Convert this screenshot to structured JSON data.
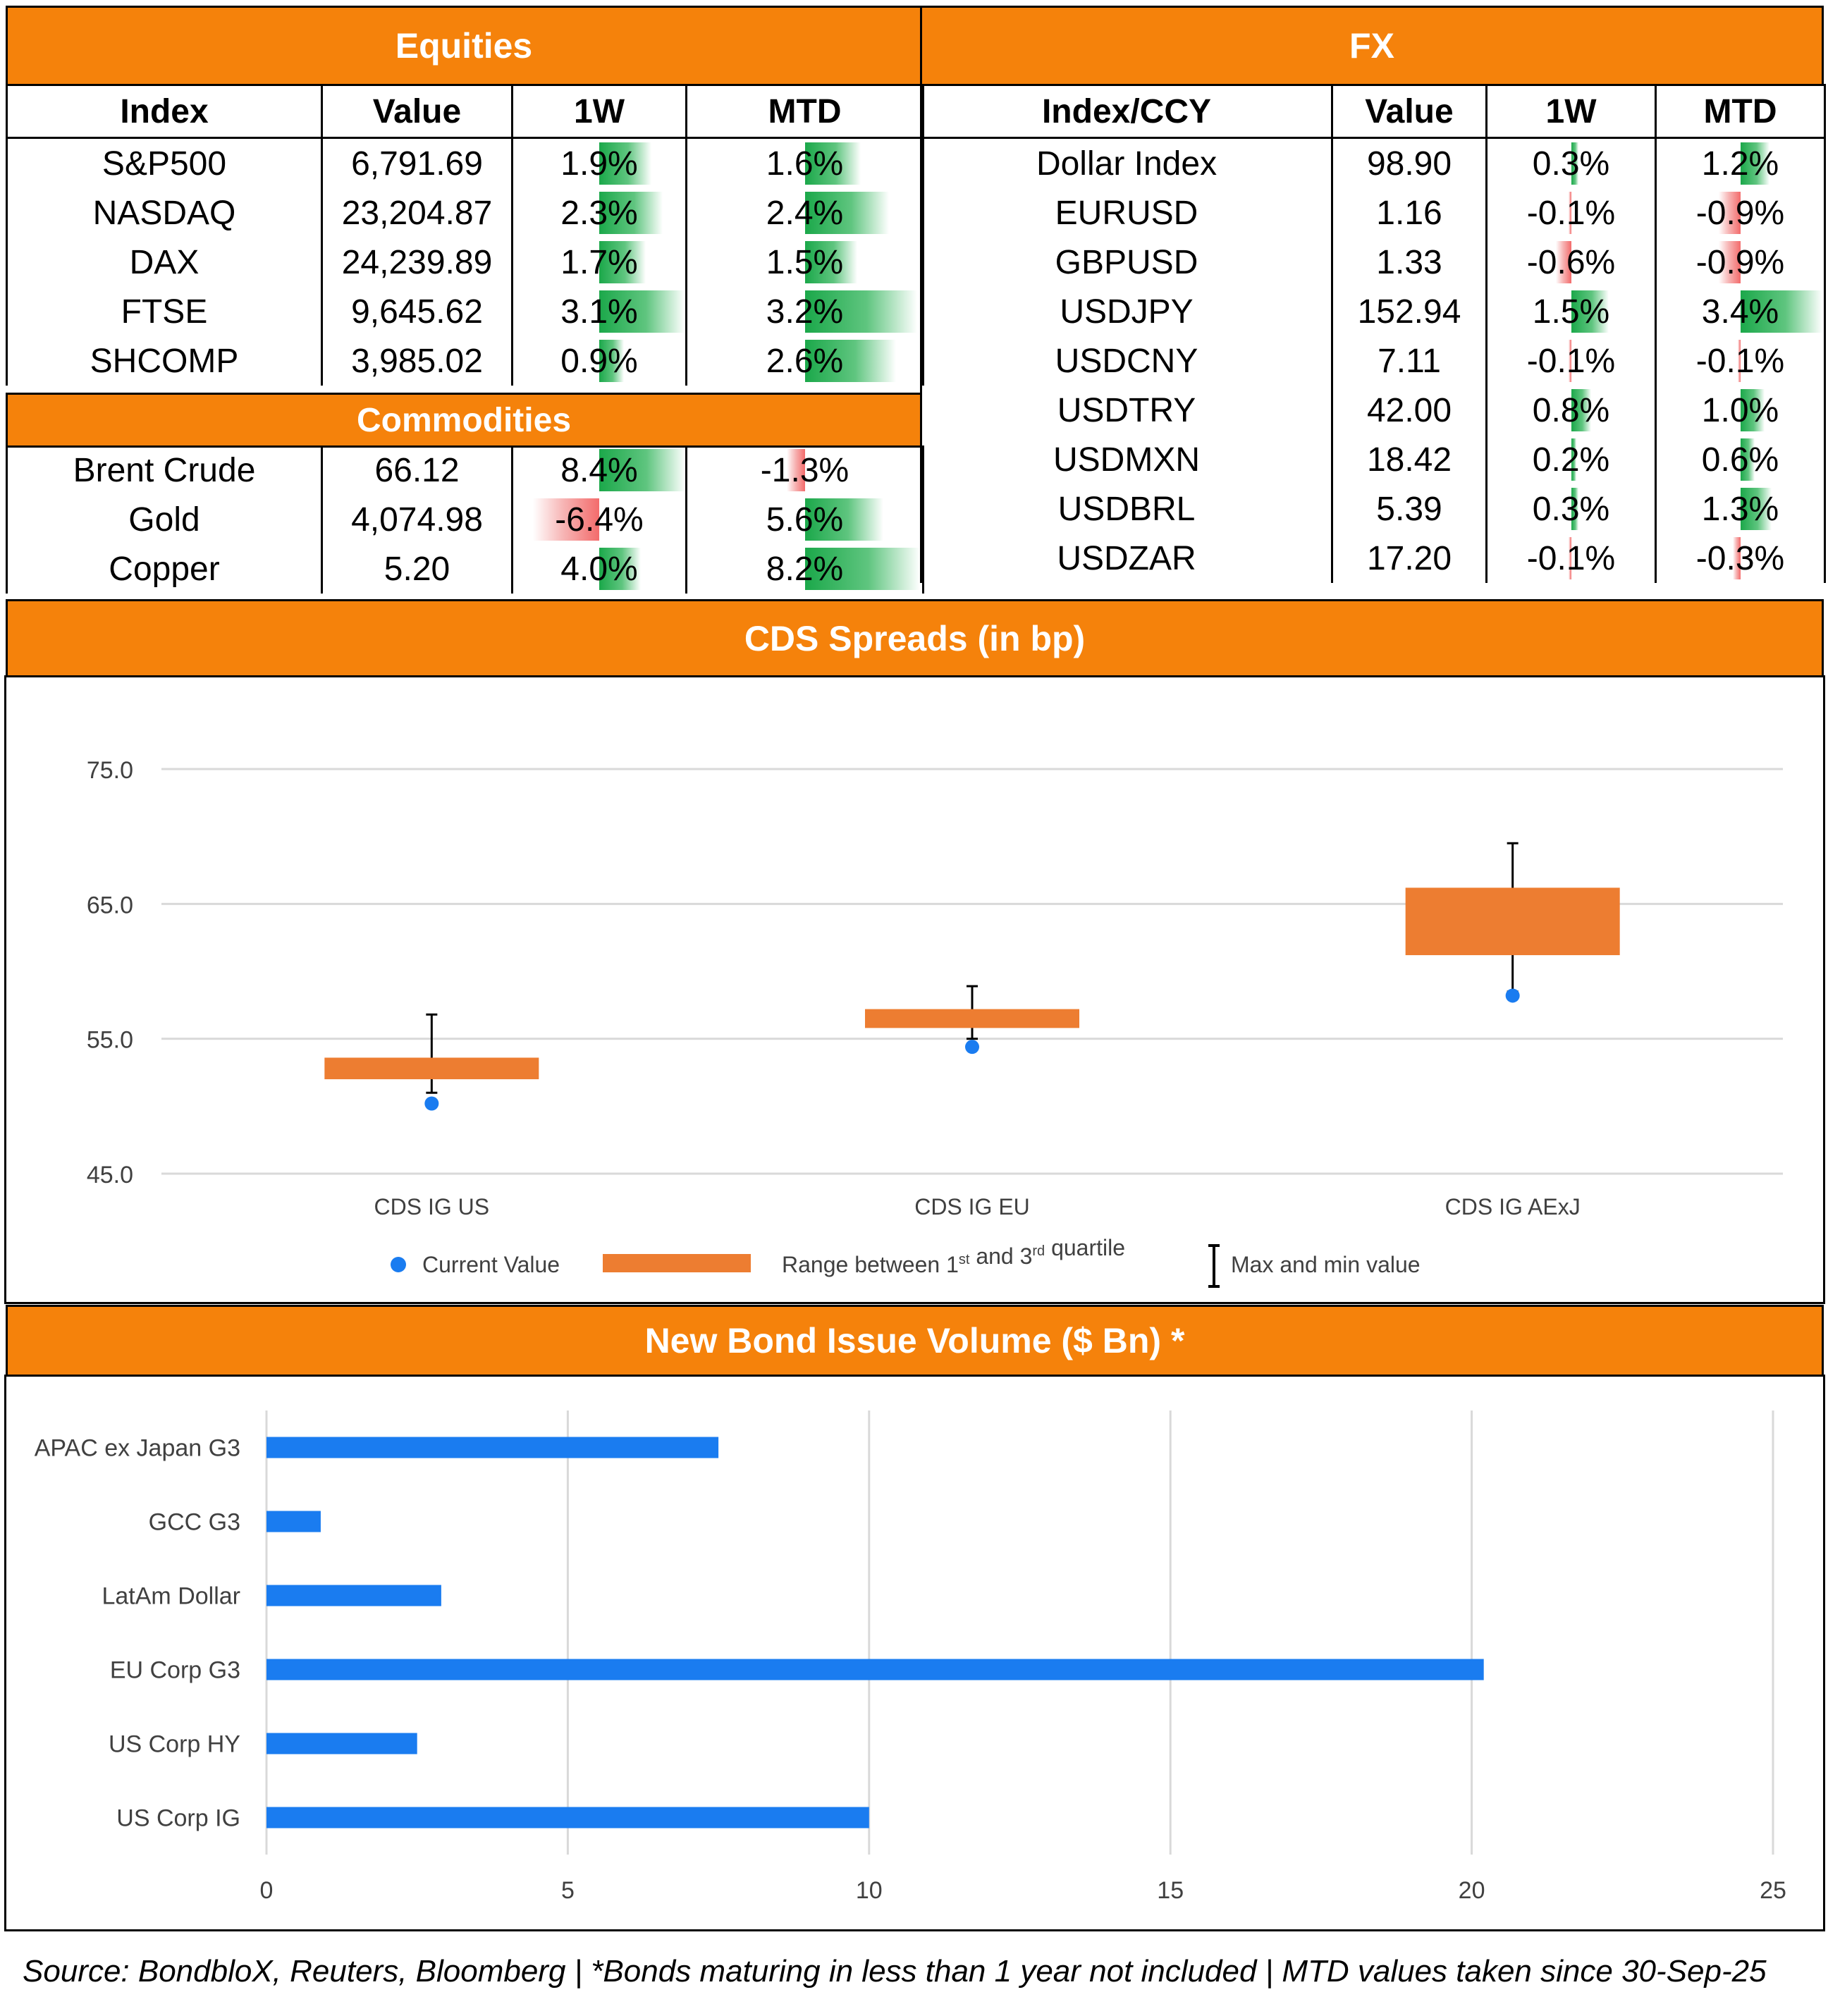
{
  "equities": {
    "title": "Equities",
    "headers": [
      "Index",
      "Value",
      "1W",
      "MTD"
    ],
    "rows": [
      {
        "name": "S&P500",
        "value": "6,791.69",
        "w1": "1.9%",
        "w1_num": 1.9,
        "mtd": "1.6%",
        "mtd_num": 1.6
      },
      {
        "name": "NASDAQ",
        "value": "23,204.87",
        "w1": "2.3%",
        "w1_num": 2.3,
        "mtd": "2.4%",
        "mtd_num": 2.4
      },
      {
        "name": "DAX",
        "value": "24,239.89",
        "w1": "1.7%",
        "w1_num": 1.7,
        "mtd": "1.5%",
        "mtd_num": 1.5
      },
      {
        "name": "FTSE",
        "value": "9,645.62",
        "w1": "3.1%",
        "w1_num": 3.1,
        "mtd": "3.2%",
        "mtd_num": 3.2
      },
      {
        "name": "SHCOMP",
        "value": "3,985.02",
        "w1": "0.9%",
        "w1_num": 0.9,
        "mtd": "2.6%",
        "mtd_num": 2.6
      }
    ]
  },
  "commodities": {
    "title": "Commodities",
    "rows": [
      {
        "name": "Brent Crude",
        "value": "66.12",
        "w1": "8.4%",
        "w1_num": 8.4,
        "mtd": "-1.3%",
        "mtd_num": -1.3
      },
      {
        "name": "Gold",
        "value": "4,074.98",
        "w1": "-6.4%",
        "w1_num": -6.4,
        "mtd": "5.6%",
        "mtd_num": 5.6
      },
      {
        "name": "Copper",
        "value": "5.20",
        "w1": "4.0%",
        "w1_num": 4.0,
        "mtd": "8.2%",
        "mtd_num": 8.2
      }
    ]
  },
  "fx": {
    "title": "FX",
    "headers": [
      "Index/CCY",
      "Value",
      "1W",
      "MTD"
    ],
    "rows": [
      {
        "name": "Dollar Index",
        "value": "98.90",
        "w1": "0.3%",
        "w1_num": 0.3,
        "mtd": "1.2%",
        "mtd_num": 1.2
      },
      {
        "name": "EURUSD",
        "value": "1.16",
        "w1": "-0.1%",
        "w1_num": -0.1,
        "mtd": "-0.9%",
        "mtd_num": -0.9
      },
      {
        "name": "GBPUSD",
        "value": "1.33",
        "w1": "-0.6%",
        "w1_num": -0.6,
        "mtd": "-0.9%",
        "mtd_num": -0.9
      },
      {
        "name": "USDJPY",
        "value": "152.94",
        "w1": "1.5%",
        "w1_num": 1.5,
        "mtd": "3.4%",
        "mtd_num": 3.4
      },
      {
        "name": "USDCNY",
        "value": "7.11",
        "w1": "-0.1%",
        "w1_num": -0.1,
        "mtd": "-0.1%",
        "mtd_num": -0.1
      },
      {
        "name": "USDTRY",
        "value": "42.00",
        "w1": "0.8%",
        "w1_num": 0.8,
        "mtd": "1.0%",
        "mtd_num": 1.0
      },
      {
        "name": "USDMXN",
        "value": "18.42",
        "w1": "0.2%",
        "w1_num": 0.2,
        "mtd": "0.6%",
        "mtd_num": 0.6
      },
      {
        "name": "USDBRL",
        "value": "5.39",
        "w1": "0.3%",
        "w1_num": 0.3,
        "mtd": "1.3%",
        "mtd_num": 1.3
      },
      {
        "name": "USDZAR",
        "value": "17.20",
        "w1": "-0.1%",
        "w1_num": -0.1,
        "mtd": "-0.3%",
        "mtd_num": -0.3
      }
    ]
  },
  "chart_data": [
    {
      "type": "box",
      "title": "CDS Spreads (in bp)",
      "categories": [
        "CDS IG US",
        "CDS IG EU",
        "CDS IG AExJ"
      ],
      "q1": [
        52.0,
        55.8,
        61.2
      ],
      "q3": [
        53.6,
        57.2,
        66.2
      ],
      "min": [
        51.0,
        55.0,
        58.5
      ],
      "max": [
        56.8,
        58.9,
        69.5
      ],
      "current": [
        50.2,
        54.4,
        58.2
      ],
      "ylim": [
        45,
        75
      ],
      "yticks": [
        "45.0",
        "55.0",
        "65.0",
        "75.0"
      ],
      "ytick_values": [
        45,
        55,
        65,
        75
      ],
      "legend": {
        "current": "Current Value",
        "range": "Range between 1",
        "range_sup1": "st",
        "range_mid": " and 3",
        "range_sup2": "rd",
        "range_end": " quartile",
        "minmax": "Max and min value"
      }
    },
    {
      "type": "bar",
      "orientation": "horizontal",
      "title": "New Bond Issue Volume ($ Bn) *",
      "categories": [
        "APAC ex Japan G3",
        "GCC G3",
        "LatAm Dollar",
        "EU Corp G3",
        "US Corp HY",
        "US Corp IG"
      ],
      "values": [
        7.5,
        0.9,
        2.9,
        20.2,
        2.5,
        10.0
      ],
      "xlim": [
        0,
        25
      ],
      "xticks": [
        "0",
        "5",
        "10",
        "15",
        "20",
        "25"
      ],
      "xtick_values": [
        0,
        5,
        10,
        15,
        20,
        25
      ],
      "color": "#1A7CF0"
    }
  ],
  "colors": {
    "header": "#F5820B",
    "positive": "#1BA84A",
    "negative": "#F36B6B",
    "box": "#ED7D31",
    "dot": "#1A7CF0"
  },
  "footer": "Source: BondbloX, Reuters, Bloomberg | *Bonds maturing in less than 1 year not included | MTD values taken since 30-Sep-25"
}
